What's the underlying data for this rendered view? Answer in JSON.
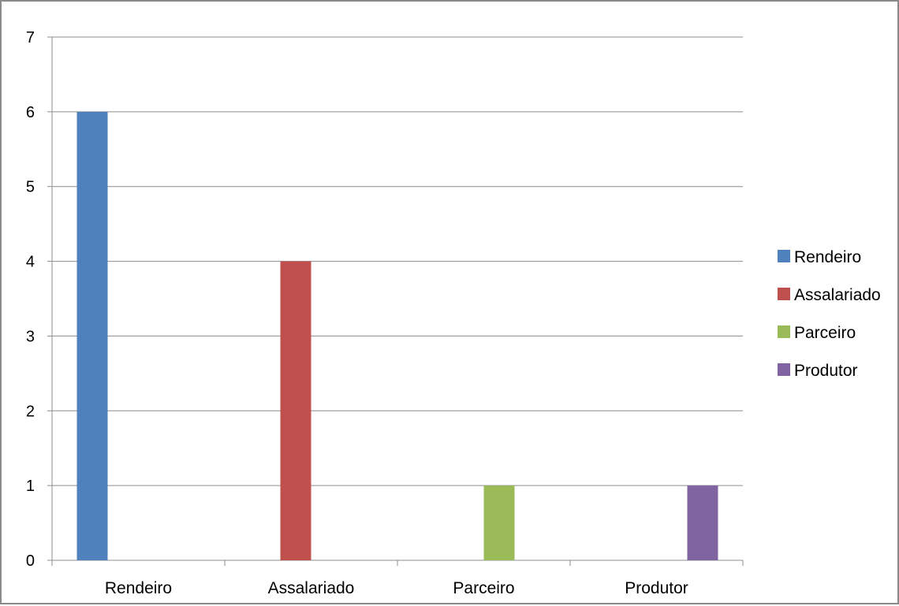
{
  "chart_data": {
    "type": "bar",
    "title": "",
    "xlabel": "",
    "ylabel": "",
    "categories": [
      "Rendeiro",
      "Assalariado",
      "Parceiro",
      "Produtor"
    ],
    "series": [
      {
        "name": "Rendeiro",
        "values": [
          6,
          0,
          0,
          0
        ],
        "color": "#4F81BD"
      },
      {
        "name": "Assalariado",
        "values": [
          0,
          4,
          0,
          0
        ],
        "color": "#C0504D"
      },
      {
        "name": "Parceiro",
        "values": [
          0,
          0,
          1,
          0
        ],
        "color": "#9BBB59"
      },
      {
        "name": "Produtor",
        "values": [
          0,
          0,
          0,
          1
        ],
        "color": "#8064A2"
      }
    ],
    "ylim": [
      0,
      7
    ],
    "yticks": [
      "0",
      "1",
      "2",
      "3",
      "4",
      "5",
      "6",
      "7"
    ],
    "grid": true,
    "legend_position": "right"
  }
}
